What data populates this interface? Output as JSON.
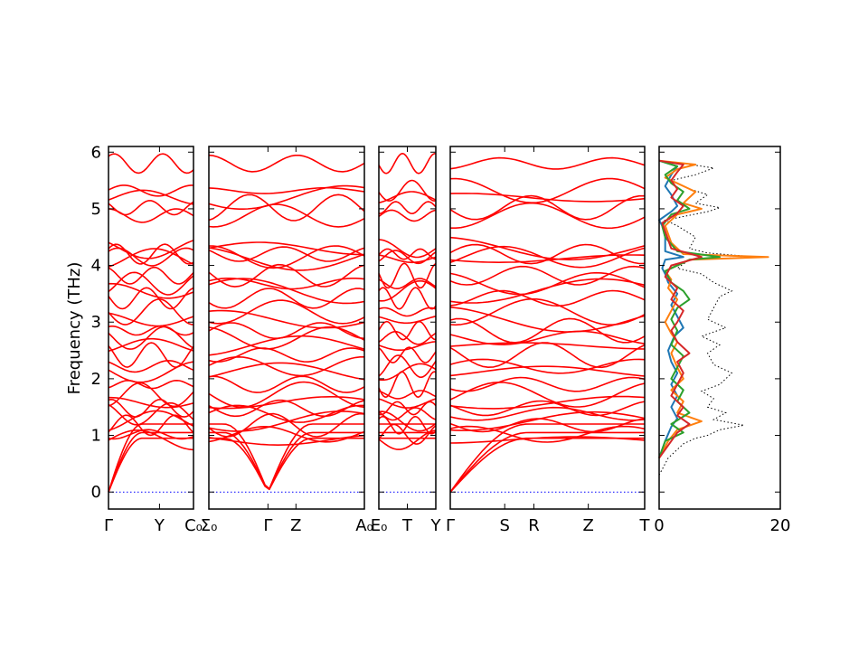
{
  "chart_data": {
    "type": "line",
    "ylabel": "Frequency (THz)",
    "ylim": [
      -0.3,
      6.1
    ],
    "yticks": [
      "0",
      "1",
      "2",
      "3",
      "4",
      "5",
      "6"
    ],
    "band_color": "#ff0000",
    "zero_line_color": "#0000ff",
    "panels": [
      {
        "labels": [
          "Γ",
          "Y",
          "C₀"
        ],
        "segments": [
          [
            0,
            0.6
          ],
          [
            0.6,
            1.0
          ]
        ]
      },
      {
        "labels": [
          "Σ₀",
          "Γ",
          "Z",
          "A₀"
        ],
        "segments": [
          [
            0,
            0.38
          ],
          [
            0.38,
            0.56
          ],
          [
            0.56,
            1.0
          ]
        ]
      },
      {
        "labels": [
          "E₀",
          "T",
          "Y"
        ],
        "segments": [
          [
            0,
            0.5
          ],
          [
            0.5,
            1.0
          ]
        ]
      },
      {
        "labels": [
          "Γ",
          "S",
          "R",
          "Z",
          "T"
        ],
        "segments": [
          [
            0,
            0.28
          ],
          [
            0.28,
            0.43
          ],
          [
            0.43,
            0.71
          ],
          [
            0.71,
            1.0
          ]
        ]
      }
    ],
    "band_frequencies_at_gamma": [
      0,
      0,
      0,
      0.92,
      1.02,
      1.18,
      1.25,
      1.38,
      1.48,
      1.58,
      1.72,
      1.9,
      2.12,
      2.22,
      2.42,
      2.58,
      2.72,
      2.85,
      3.05,
      3.18,
      3.42,
      3.55,
      3.68,
      3.82,
      4.12,
      4.15,
      4.2,
      4.3,
      4.88,
      5.02,
      5.2,
      5.32,
      5.8
    ],
    "dos": {
      "xlabel": "",
      "xlim": [
        0,
        20
      ],
      "xticks": [
        "0",
        "20"
      ],
      "total": {
        "color": "#000000",
        "points": [
          [
            0,
            0.3
          ],
          [
            1.5,
            0.6
          ],
          [
            4,
            0.85
          ],
          [
            6,
            0.95
          ],
          [
            8,
            1.0
          ],
          [
            10,
            1.1
          ],
          [
            14,
            1.18
          ],
          [
            9,
            1.28
          ],
          [
            11,
            1.4
          ],
          [
            8,
            1.5
          ],
          [
            9,
            1.65
          ],
          [
            7,
            1.78
          ],
          [
            10,
            1.9
          ],
          [
            12,
            2.1
          ],
          [
            9,
            2.25
          ],
          [
            8,
            2.45
          ],
          [
            10,
            2.6
          ],
          [
            7,
            2.75
          ],
          [
            11,
            2.9
          ],
          [
            8,
            3.05
          ],
          [
            9,
            3.25
          ],
          [
            10,
            3.45
          ],
          [
            12,
            3.55
          ],
          [
            9,
            3.7
          ],
          [
            7,
            3.85
          ],
          [
            3,
            3.95
          ],
          [
            5,
            4.1
          ],
          [
            16,
            4.15
          ],
          [
            8,
            4.22
          ],
          [
            5,
            4.3
          ],
          [
            6,
            4.5
          ],
          [
            3,
            4.7
          ],
          [
            1,
            4.8
          ],
          [
            8,
            4.95
          ],
          [
            10,
            5.02
          ],
          [
            6,
            5.1
          ],
          [
            8,
            5.25
          ],
          [
            5,
            5.35
          ],
          [
            2,
            5.5
          ],
          [
            6,
            5.6
          ],
          [
            9,
            5.72
          ],
          [
            4,
            5.8
          ],
          [
            0,
            5.85
          ]
        ]
      },
      "partials": [
        {
          "color": "#1f77b4",
          "points": [
            [
              0,
              0.6
            ],
            [
              1,
              0.9
            ],
            [
              2,
              1.15
            ],
            [
              3,
              1.3
            ],
            [
              2,
              1.5
            ],
            [
              3,
              1.7
            ],
            [
              2,
              1.9
            ],
            [
              3,
              2.1
            ],
            [
              2,
              2.3
            ],
            [
              1.5,
              2.5
            ],
            [
              2.5,
              2.75
            ],
            [
              4,
              2.9
            ],
            [
              3,
              3.1
            ],
            [
              2,
              3.3
            ],
            [
              3,
              3.5
            ],
            [
              1.5,
              3.7
            ],
            [
              1,
              3.85
            ],
            [
              0.5,
              3.95
            ],
            [
              1,
              4.1
            ],
            [
              4,
              4.15
            ],
            [
              1,
              4.25
            ],
            [
              1,
              4.5
            ],
            [
              0.5,
              4.7
            ],
            [
              0,
              4.8
            ],
            [
              2,
              4.95
            ],
            [
              3,
              5.05
            ],
            [
              2,
              5.25
            ],
            [
              1,
              5.4
            ],
            [
              2,
              5.6
            ],
            [
              3,
              5.75
            ],
            [
              0,
              5.85
            ]
          ]
        },
        {
          "color": "#ff7f0e",
          "points": [
            [
              0,
              0.6
            ],
            [
              1.5,
              0.9
            ],
            [
              3,
              1.1
            ],
            [
              7,
              1.25
            ],
            [
              3,
              1.4
            ],
            [
              4,
              1.6
            ],
            [
              2,
              1.8
            ],
            [
              4,
              2.0
            ],
            [
              3,
              2.2
            ],
            [
              2,
              2.45
            ],
            [
              3,
              2.65
            ],
            [
              2,
              2.8
            ],
            [
              1,
              3.0
            ],
            [
              2,
              3.2
            ],
            [
              3,
              3.4
            ],
            [
              1.5,
              3.6
            ],
            [
              2,
              3.75
            ],
            [
              1,
              3.9
            ],
            [
              5,
              4.1
            ],
            [
              18,
              4.15
            ],
            [
              4,
              4.2
            ],
            [
              2,
              4.4
            ],
            [
              1,
              4.7
            ],
            [
              3,
              4.9
            ],
            [
              7,
              5.0
            ],
            [
              4,
              5.1
            ],
            [
              6,
              5.3
            ],
            [
              3,
              5.45
            ],
            [
              1,
              5.55
            ],
            [
              3,
              5.7
            ],
            [
              6,
              5.78
            ],
            [
              0,
              5.85
            ]
          ]
        },
        {
          "color": "#2ca02c",
          "points": [
            [
              0,
              0.6
            ],
            [
              1,
              0.9
            ],
            [
              4,
              1.05
            ],
            [
              2,
              1.2
            ],
            [
              5,
              1.4
            ],
            [
              3,
              1.6
            ],
            [
              4,
              1.8
            ],
            [
              2,
              2.0
            ],
            [
              3,
              2.2
            ],
            [
              4,
              2.4
            ],
            [
              2,
              2.6
            ],
            [
              3,
              2.85
            ],
            [
              2,
              3.05
            ],
            [
              3,
              3.25
            ],
            [
              5,
              3.4
            ],
            [
              4,
              3.55
            ],
            [
              2,
              3.7
            ],
            [
              1,
              3.9
            ],
            [
              5,
              4.1
            ],
            [
              10,
              4.15
            ],
            [
              3,
              4.25
            ],
            [
              1,
              4.5
            ],
            [
              0.5,
              4.7
            ],
            [
              2,
              4.9
            ],
            [
              5,
              5.0
            ],
            [
              3,
              5.15
            ],
            [
              4,
              5.3
            ],
            [
              2,
              5.45
            ],
            [
              1,
              5.6
            ],
            [
              3,
              5.75
            ],
            [
              0,
              5.85
            ]
          ]
        },
        {
          "color": "#d62728",
          "points": [
            [
              0,
              0.6
            ],
            [
              2,
              0.9
            ],
            [
              3,
              1.05
            ],
            [
              5,
              1.2
            ],
            [
              3,
              1.35
            ],
            [
              4,
              1.5
            ],
            [
              2,
              1.7
            ],
            [
              3,
              1.9
            ],
            [
              4,
              2.1
            ],
            [
              3,
              2.3
            ],
            [
              5,
              2.45
            ],
            [
              3,
              2.65
            ],
            [
              2,
              2.85
            ],
            [
              3,
              3.0
            ],
            [
              4,
              3.2
            ],
            [
              2,
              3.4
            ],
            [
              3,
              3.6
            ],
            [
              1,
              3.8
            ],
            [
              2,
              4.0
            ],
            [
              7,
              4.15
            ],
            [
              2,
              4.3
            ],
            [
              1,
              4.6
            ],
            [
              0.5,
              4.75
            ],
            [
              3,
              4.92
            ],
            [
              4,
              5.05
            ],
            [
              2,
              5.2
            ],
            [
              3,
              5.35
            ],
            [
              2,
              5.5
            ],
            [
              3,
              5.65
            ],
            [
              4,
              5.78
            ],
            [
              0,
              5.85
            ]
          ]
        }
      ]
    }
  }
}
